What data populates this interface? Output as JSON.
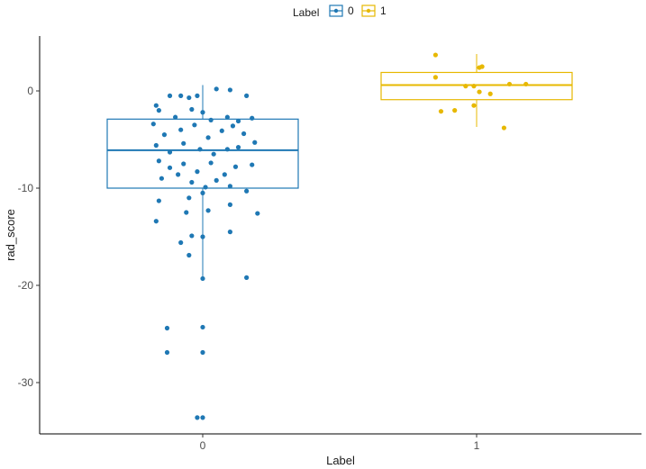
{
  "chart_data": {
    "type": "boxplot",
    "xlabel": "Label",
    "ylabel": "rad_score",
    "categories": [
      "0",
      "1"
    ],
    "ylim": [
      -36,
      5.5
    ],
    "yticks": [
      0,
      -10,
      -20,
      -30
    ],
    "grid": false,
    "legend": {
      "title": "Label",
      "position": "top",
      "entries": [
        "0",
        "1"
      ]
    },
    "colors": {
      "0": "#1f78b4",
      "1": "#e7b800"
    },
    "series": [
      {
        "name": "0",
        "box": {
          "min": -19.2,
          "q1": -10.0,
          "median": -6.1,
          "q3": -2.9,
          "max": 0.6
        },
        "points": [
          [
            -0.17,
            -1.5
          ],
          [
            -0.12,
            -0.5
          ],
          [
            -0.08,
            -0.5
          ],
          [
            -0.05,
            -0.7
          ],
          [
            -0.02,
            -0.5
          ],
          [
            0.05,
            0.2
          ],
          [
            0.1,
            0.1
          ],
          [
            0.16,
            -0.5
          ],
          [
            -0.16,
            -2.0
          ],
          [
            -0.1,
            -2.7
          ],
          [
            -0.04,
            -1.9
          ],
          [
            0.0,
            -2.2
          ],
          [
            0.03,
            -3.0
          ],
          [
            0.09,
            -2.7
          ],
          [
            0.13,
            -3.1
          ],
          [
            0.18,
            -2.8
          ],
          [
            -0.18,
            -3.4
          ],
          [
            -0.14,
            -4.5
          ],
          [
            -0.08,
            -4.0
          ],
          [
            -0.03,
            -3.5
          ],
          [
            0.02,
            -4.8
          ],
          [
            0.07,
            -4.1
          ],
          [
            0.11,
            -3.6
          ],
          [
            0.15,
            -4.4
          ],
          [
            -0.17,
            -5.6
          ],
          [
            -0.12,
            -6.3
          ],
          [
            -0.07,
            -5.4
          ],
          [
            -0.01,
            -6.0
          ],
          [
            0.04,
            -6.5
          ],
          [
            0.09,
            -6.0
          ],
          [
            0.13,
            -5.8
          ],
          [
            0.19,
            -5.3
          ],
          [
            -0.16,
            -7.2
          ],
          [
            -0.12,
            -7.9
          ],
          [
            -0.07,
            -7.5
          ],
          [
            -0.02,
            -8.3
          ],
          [
            0.03,
            -7.4
          ],
          [
            0.08,
            -8.6
          ],
          [
            0.12,
            -7.8
          ],
          [
            0.18,
            -7.6
          ],
          [
            -0.15,
            -9.0
          ],
          [
            -0.09,
            -8.6
          ],
          [
            -0.04,
            -9.4
          ],
          [
            0.01,
            -9.9
          ],
          [
            0.05,
            -9.2
          ],
          [
            0.1,
            -9.8
          ],
          [
            0.16,
            -10.3
          ],
          [
            -0.05,
            -11.0
          ],
          [
            0.0,
            -10.5
          ],
          [
            0.02,
            -12.3
          ],
          [
            0.1,
            -11.7
          ],
          [
            0.2,
            -12.6
          ],
          [
            -0.16,
            -11.3
          ],
          [
            -0.17,
            -13.4
          ],
          [
            -0.06,
            -12.5
          ],
          [
            -0.04,
            -14.9
          ],
          [
            0.0,
            -15.0
          ],
          [
            0.1,
            -14.5
          ],
          [
            -0.08,
            -15.6
          ],
          [
            -0.05,
            -16.9
          ],
          [
            0.0,
            -19.3
          ],
          [
            0.16,
            -19.2
          ],
          [
            -0.13,
            -24.4
          ],
          [
            0.0,
            -24.3
          ],
          [
            -0.13,
            -26.9
          ],
          [
            0.0,
            -26.9
          ],
          [
            -0.02,
            -33.6
          ],
          [
            0.0,
            -33.6
          ]
        ]
      },
      {
        "name": "1",
        "box": {
          "min": -3.7,
          "q1": -0.9,
          "median": 0.6,
          "q3": 1.9,
          "max": 3.8
        },
        "points": [
          [
            0.85,
            3.7
          ],
          [
            0.85,
            1.4
          ],
          [
            1.01,
            2.4
          ],
          [
            1.02,
            2.5
          ],
          [
            0.96,
            0.5
          ],
          [
            0.99,
            0.5
          ],
          [
            1.12,
            0.7
          ],
          [
            1.18,
            0.7
          ],
          [
            1.01,
            -0.1
          ],
          [
            1.05,
            -0.3
          ],
          [
            0.99,
            -1.5
          ],
          [
            0.87,
            -2.1
          ],
          [
            0.92,
            -2.0
          ],
          [
            1.1,
            -3.8
          ]
        ]
      }
    ]
  }
}
